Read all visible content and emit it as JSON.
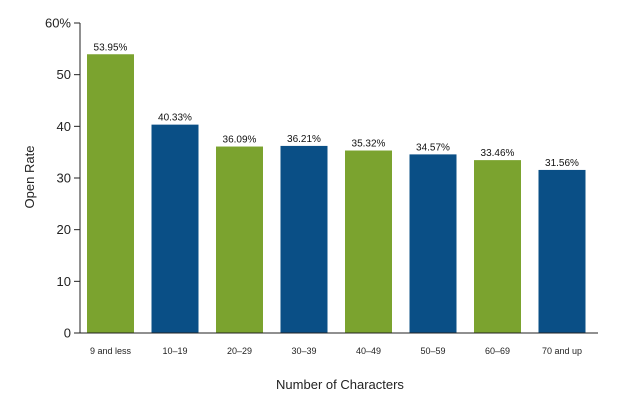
{
  "chart_data": {
    "type": "bar",
    "title": "",
    "xlabel": "Number of Characters",
    "ylabel": "Open Rate",
    "ylim": [
      0,
      60
    ],
    "yticks": [
      0,
      10,
      20,
      30,
      40,
      50,
      60
    ],
    "ytick_labels": [
      "0",
      "10",
      "20",
      "30",
      "40",
      "50",
      "60%"
    ],
    "categories": [
      "9 and less",
      "10–19",
      "20–29",
      "30–39",
      "40–49",
      "50–59",
      "60–69",
      "70 and up"
    ],
    "values": [
      53.95,
      40.33,
      36.09,
      36.21,
      35.32,
      34.57,
      33.46,
      31.56
    ],
    "value_labels": [
      "53.95%",
      "40.33%",
      "36.09%",
      "36.21%",
      "35.32%",
      "34.57%",
      "33.46%",
      "31.56%"
    ],
    "bar_colors": [
      "#7ba32f",
      "#0a4f86",
      "#7ba32f",
      "#0a4f86",
      "#7ba32f",
      "#0a4f86",
      "#7ba32f",
      "#0a4f86"
    ],
    "grid": false,
    "legend": "none"
  }
}
